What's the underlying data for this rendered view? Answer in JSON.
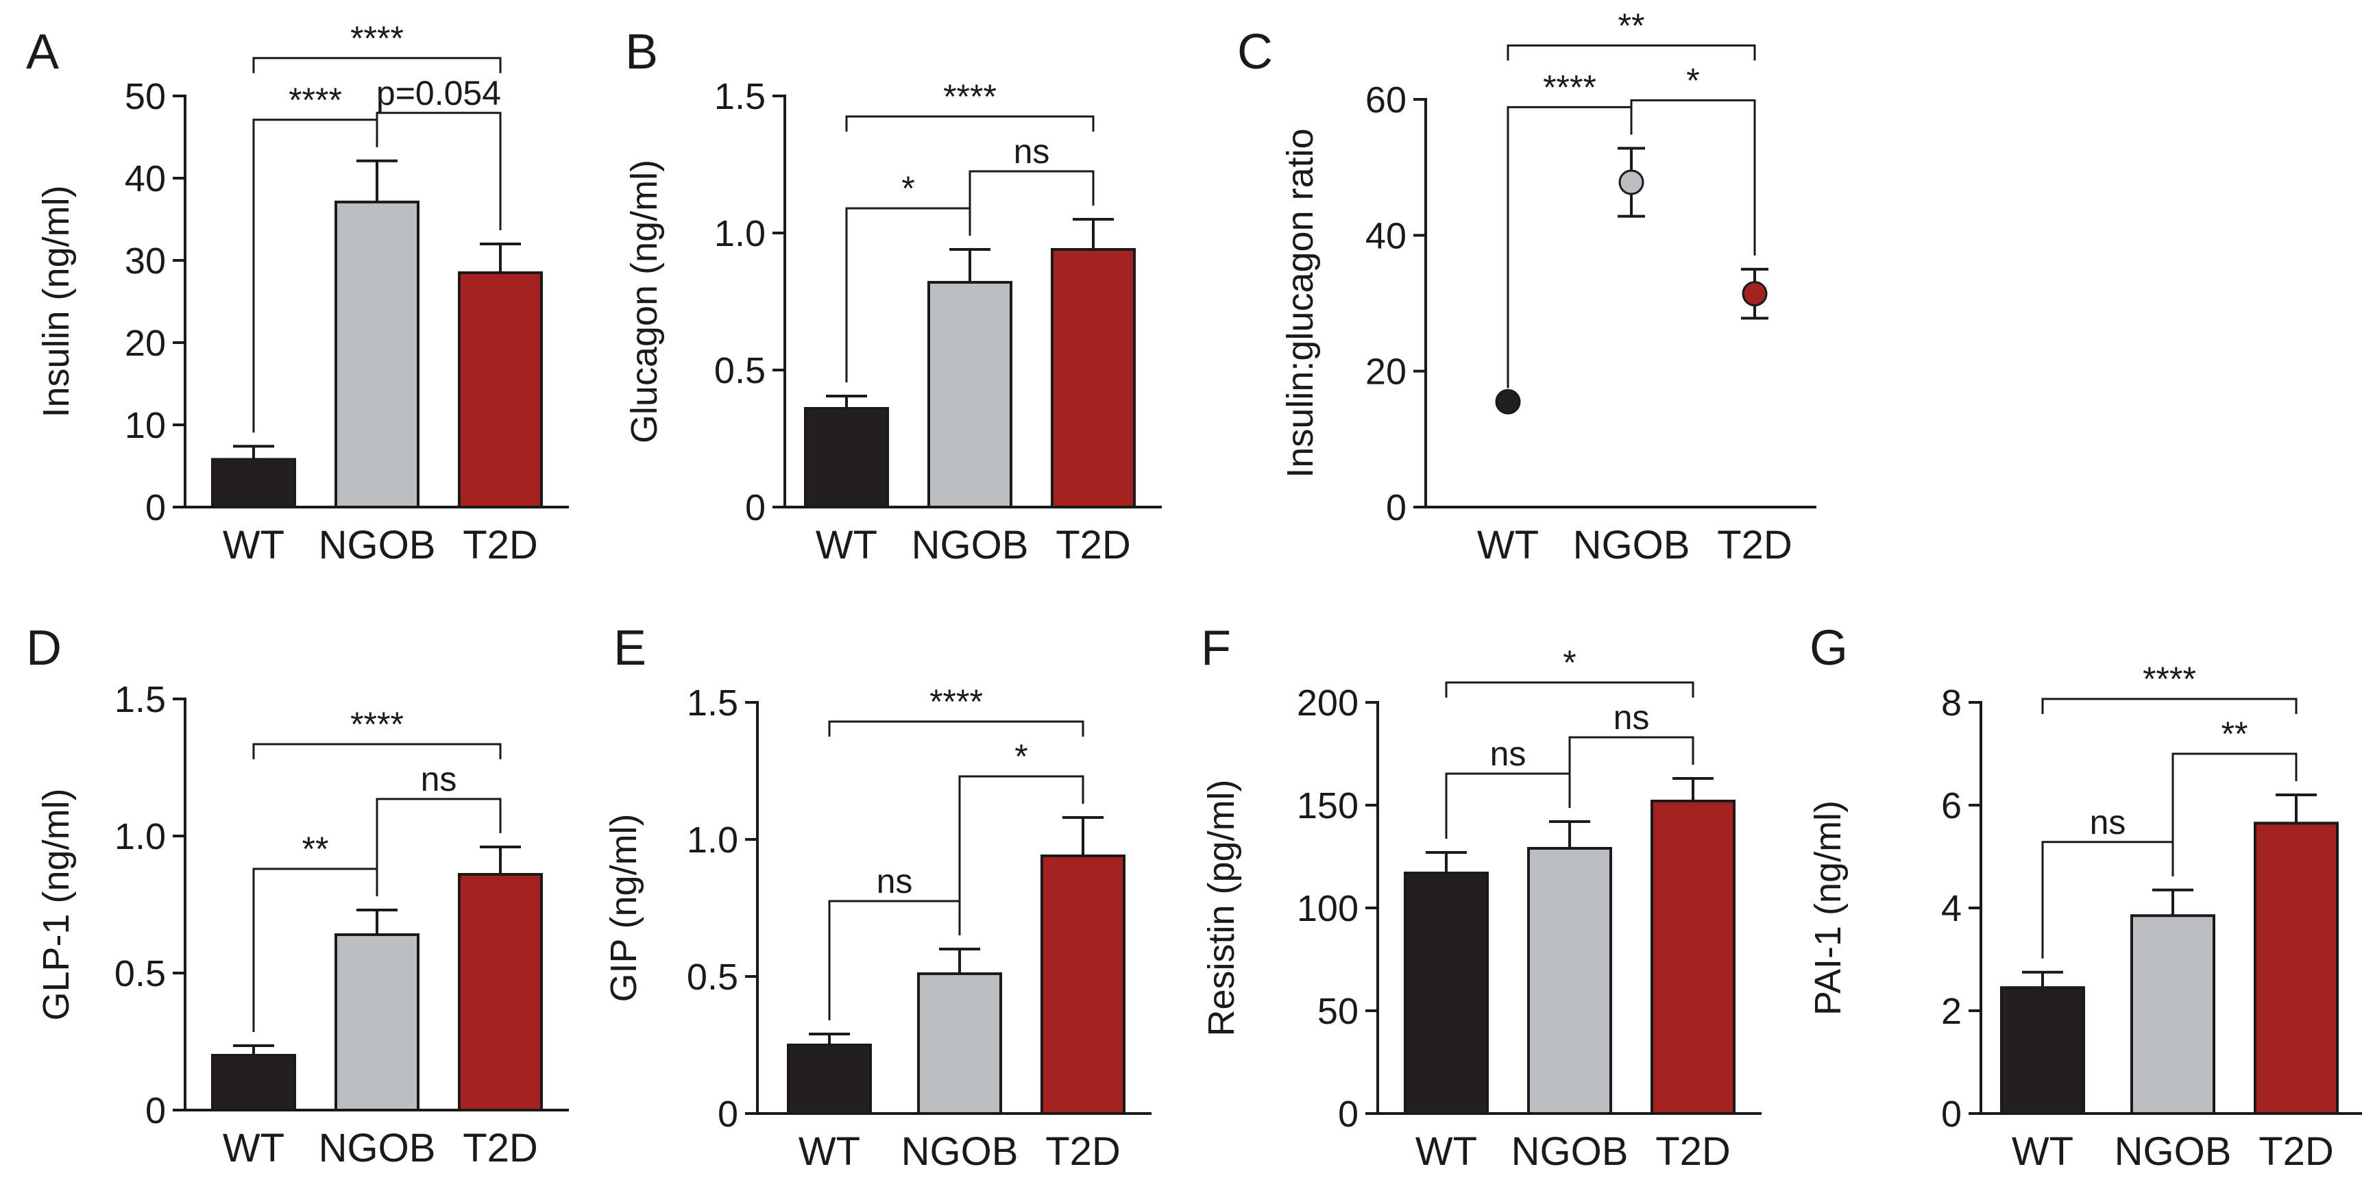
{
  "colors": {
    "WT": "#231f20",
    "NGOB": "#bcbdc0",
    "T2D": "#a3221f",
    "axis": "#1a1a1a"
  },
  "chart_data": [
    {
      "id": "A",
      "type": "bar",
      "letter": "A",
      "ylabel": "Insulin (ng/ml)",
      "categories": [
        "WT",
        "NGOB",
        "T2D"
      ],
      "values": [
        5.8,
        37.1,
        28.5
      ],
      "errors": [
        1.6,
        5.0,
        3.5
      ],
      "ylim": [
        0,
        50
      ],
      "ticks": [
        0,
        10,
        20,
        30,
        40,
        50
      ],
      "tick_labels": [
        "0",
        "10",
        "20",
        "30",
        "40",
        "50"
      ],
      "brackets": [
        {
          "from": 0,
          "to": 2,
          "label": "****"
        },
        {
          "from": 0,
          "to": 1,
          "label": "****"
        },
        {
          "from": 1,
          "to": 2,
          "label": "p=0.054"
        }
      ]
    },
    {
      "id": "B",
      "type": "bar",
      "letter": "B",
      "ylabel": "Glucagon (ng/ml)",
      "categories": [
        "WT",
        "NGOB",
        "T2D"
      ],
      "values": [
        0.36,
        0.82,
        0.94
      ],
      "errors": [
        0.045,
        0.12,
        0.11
      ],
      "ylim": [
        0,
        1.5
      ],
      "ticks": [
        0,
        0.5,
        1.0,
        1.5
      ],
      "tick_labels": [
        "0",
        "0.5",
        "1.0",
        "1.5"
      ],
      "brackets": [
        {
          "from": 0,
          "to": 2,
          "label": "****"
        },
        {
          "from": 0,
          "to": 1,
          "label": "*"
        },
        {
          "from": 1,
          "to": 2,
          "label": "ns"
        }
      ]
    },
    {
      "id": "C",
      "type": "scatter",
      "letter": "C",
      "ylabel": "Insulin:glucagon ratio",
      "categories": [
        "WT",
        "NGOB",
        "T2D"
      ],
      "values": [
        15.5,
        47.8,
        31.4
      ],
      "errors": [
        0,
        5.0,
        3.6
      ],
      "ylim": [
        0,
        60
      ],
      "ticks": [
        0,
        20,
        40,
        60
      ],
      "tick_labels": [
        "0",
        "20",
        "40",
        "60"
      ],
      "brackets": [
        {
          "from": 0,
          "to": 2,
          "label": "**"
        },
        {
          "from": 0,
          "to": 1,
          "label": "****"
        },
        {
          "from": 1,
          "to": 2,
          "label": "*"
        }
      ]
    },
    {
      "id": "D",
      "type": "bar",
      "letter": "D",
      "ylabel": "GLP-1 (ng/ml)",
      "categories": [
        "WT",
        "NGOB",
        "T2D"
      ],
      "values": [
        0.2,
        0.64,
        0.86
      ],
      "errors": [
        0.035,
        0.09,
        0.1
      ],
      "ylim": [
        0,
        1.5
      ],
      "ticks": [
        0,
        0.5,
        1.0,
        1.5
      ],
      "tick_labels": [
        "0",
        "0.5",
        "1.0",
        "1.5"
      ],
      "brackets": [
        {
          "from": 0,
          "to": 2,
          "label": "****"
        },
        {
          "from": 0,
          "to": 1,
          "label": "**"
        },
        {
          "from": 1,
          "to": 2,
          "label": "ns"
        }
      ]
    },
    {
      "id": "E",
      "type": "bar",
      "letter": "E",
      "ylabel": "GIP (ng/ml)",
      "categories": [
        "WT",
        "NGOB",
        "T2D"
      ],
      "values": [
        0.25,
        0.51,
        0.94
      ],
      "errors": [
        0.04,
        0.09,
        0.14
      ],
      "ylim": [
        0,
        1.5
      ],
      "ticks": [
        0,
        0.5,
        1.0,
        1.5
      ],
      "tick_labels": [
        "0",
        "0.5",
        "1.0",
        "1.5"
      ],
      "brackets": [
        {
          "from": 0,
          "to": 2,
          "label": "****"
        },
        {
          "from": 1,
          "to": 2,
          "label": "*"
        },
        {
          "from": 0,
          "to": 1,
          "label": "ns"
        }
      ]
    },
    {
      "id": "F",
      "type": "bar",
      "letter": "F",
      "ylabel": "Resistin (pg/ml)",
      "categories": [
        "WT",
        "NGOB",
        "T2D"
      ],
      "values": [
        117,
        129,
        152
      ],
      "errors": [
        10,
        13,
        11
      ],
      "ylim": [
        0,
        200
      ],
      "ticks": [
        0,
        50,
        100,
        150,
        200
      ],
      "tick_labels": [
        "0",
        "50",
        "100",
        "150",
        "200"
      ],
      "brackets": [
        {
          "from": 0,
          "to": 2,
          "label": "*"
        },
        {
          "from": 1,
          "to": 2,
          "label": "ns"
        },
        {
          "from": 0,
          "to": 1,
          "label": "ns"
        }
      ]
    },
    {
      "id": "G",
      "type": "bar",
      "letter": "G",
      "ylabel": "PAI-1 (ng/ml)",
      "categories": [
        "WT",
        "NGOB",
        "T2D"
      ],
      "values": [
        2.45,
        3.85,
        5.65
      ],
      "errors": [
        0.3,
        0.5,
        0.55
      ],
      "ylim": [
        0,
        8
      ],
      "ticks": [
        0,
        2,
        4,
        6,
        8
      ],
      "tick_labels": [
        "0",
        "2",
        "4",
        "6",
        "8"
      ],
      "brackets": [
        {
          "from": 0,
          "to": 2,
          "label": "****"
        },
        {
          "from": 1,
          "to": 2,
          "label": "**"
        },
        {
          "from": 0,
          "to": 1,
          "label": "ns"
        }
      ]
    }
  ]
}
